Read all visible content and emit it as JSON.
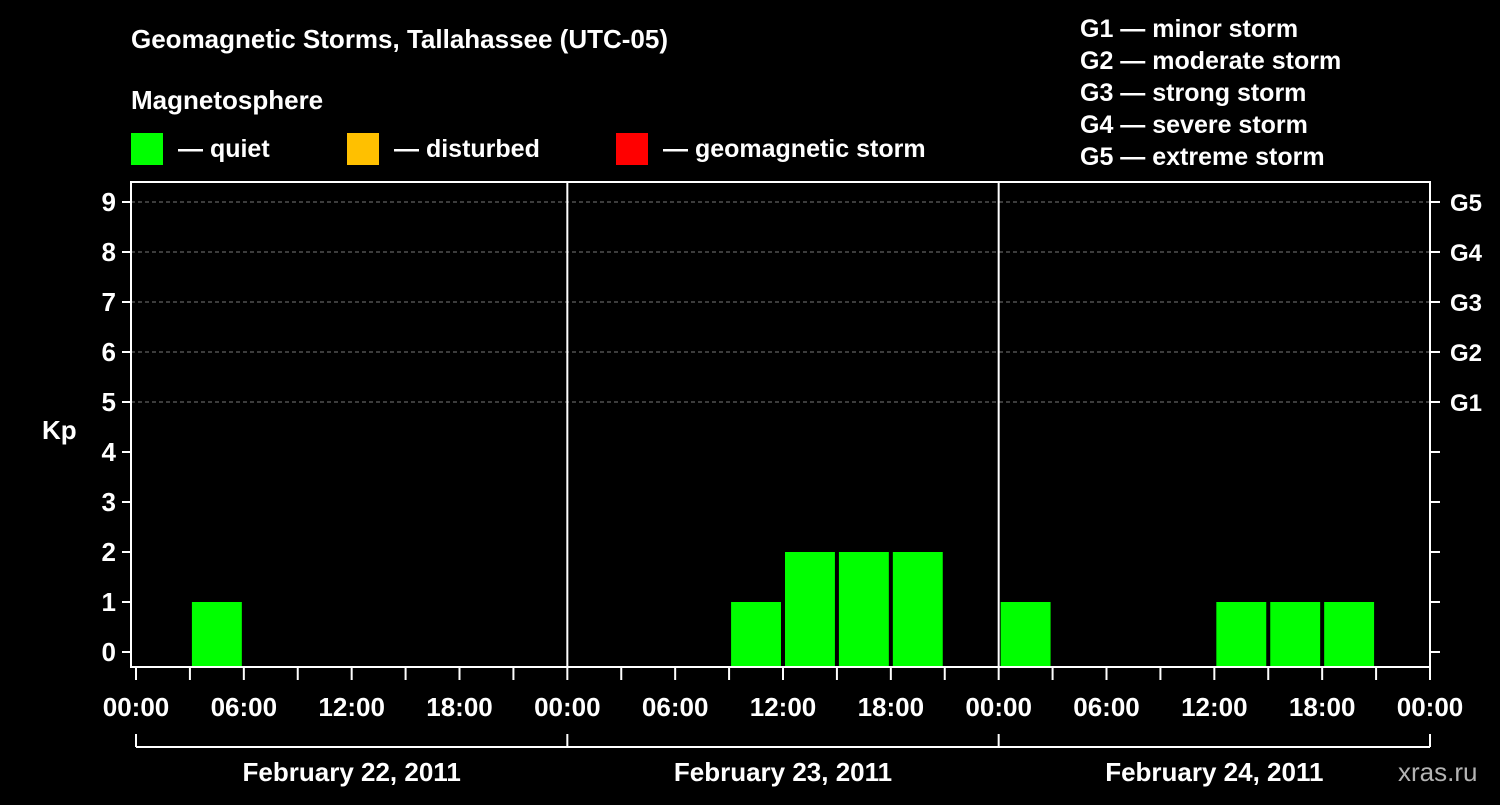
{
  "chart_data": {
    "type": "bar",
    "title": "Geomagnetic Storms, Tallahassee (UTC-05)",
    "subtitle": "Magnetosphere",
    "ylabel": "Kp",
    "ylim": [
      0,
      9
    ],
    "yticks": [
      "0",
      "1",
      "2",
      "3",
      "4",
      "5",
      "6",
      "7",
      "8",
      "9"
    ],
    "right_axis_labels": [
      {
        "kp": 5,
        "label": "G1"
      },
      {
        "kp": 6,
        "label": "G2"
      },
      {
        "kp": 7,
        "label": "G3"
      },
      {
        "kp": 8,
        "label": "G4"
      },
      {
        "kp": 9,
        "label": "G5"
      }
    ],
    "xtick_labels": [
      "00:00",
      "06:00",
      "12:00",
      "18:00",
      "00:00",
      "06:00",
      "12:00",
      "18:00",
      "00:00",
      "06:00",
      "12:00",
      "18:00",
      "00:00"
    ],
    "days": [
      "February 22, 2011",
      "February 23, 2011",
      "February 24, 2011"
    ],
    "legend": [
      {
        "label": "— quiet",
        "color": "#00ff00"
      },
      {
        "label": "— disturbed",
        "color": "#ffc000"
      },
      {
        "label": "— geomagnetic storm",
        "color": "#ff0000"
      }
    ],
    "storm_scale": [
      "G1 — minor storm",
      "G2 — moderate storm",
      "G3 — strong storm",
      "G4 — severe storm",
      "G5 — extreme storm"
    ],
    "grid": "dashed at Kp 5–9",
    "interval_hours": 3,
    "values": [
      0,
      1,
      0,
      0,
      0,
      0,
      0,
      0,
      0,
      0,
      0,
      1,
      2,
      2,
      2,
      0,
      1,
      0,
      0,
      0,
      1,
      1,
      1,
      0
    ],
    "bar_color": "#00ff00"
  },
  "watermark": "xras.ru"
}
